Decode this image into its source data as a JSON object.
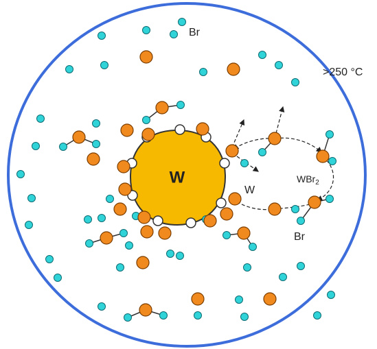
{
  "labels": {
    "br_top": "Br",
    "temperature": ">250 °C",
    "tungsten": "W",
    "w_atom": "W",
    "wbr2": {
      "text": "WBr",
      "subscript": "2"
    },
    "br_bottom": "Br"
  }
}
